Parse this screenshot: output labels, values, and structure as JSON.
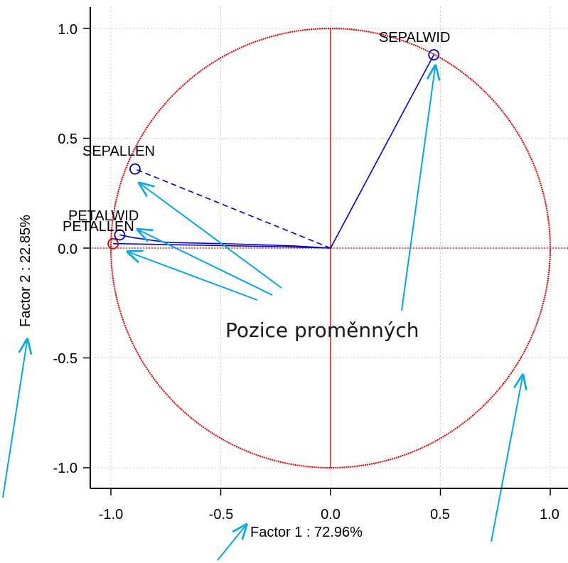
{
  "chart_data": {
    "type": "scatter",
    "subtype": "correlation-circle",
    "xlabel": "Factor 1 : 72.96%",
    "ylabel": "Factor 2 : 22.85%",
    "xlim": [
      -1.1,
      1.1
    ],
    "ylim": [
      -1.1,
      1.1
    ],
    "x_ticks": [
      "-1.0",
      "-0.5",
      "0.0",
      "0.5",
      "1.0"
    ],
    "y_ticks": [
      "1.0",
      "0.5",
      "0.0",
      "-0.5",
      "-1.0"
    ],
    "x_tick_values": [
      -1.0,
      -0.5,
      0.0,
      0.5,
      1.0
    ],
    "y_tick_values": [
      1.0,
      0.5,
      0.0,
      -0.5,
      -1.0
    ],
    "grid": true,
    "unit_circle": true,
    "points": [
      {
        "label": "SEPALWID",
        "x": 0.47,
        "y": 0.88
      },
      {
        "label": "SEPALLEN",
        "x": -0.89,
        "y": 0.36
      },
      {
        "label": "PETALWID",
        "x": -0.96,
        "y": 0.06
      },
      {
        "label": "PETALLEN",
        "x": -0.99,
        "y": 0.02
      }
    ],
    "annotation": "Pozice proměnných"
  },
  "colors": {
    "circle": "#e00000",
    "axes_cross": "#e00000",
    "vectors": "#0000cc",
    "callout_arrows": "#00a8e8",
    "grid": "#c8c8c8",
    "frame": "#000000"
  }
}
